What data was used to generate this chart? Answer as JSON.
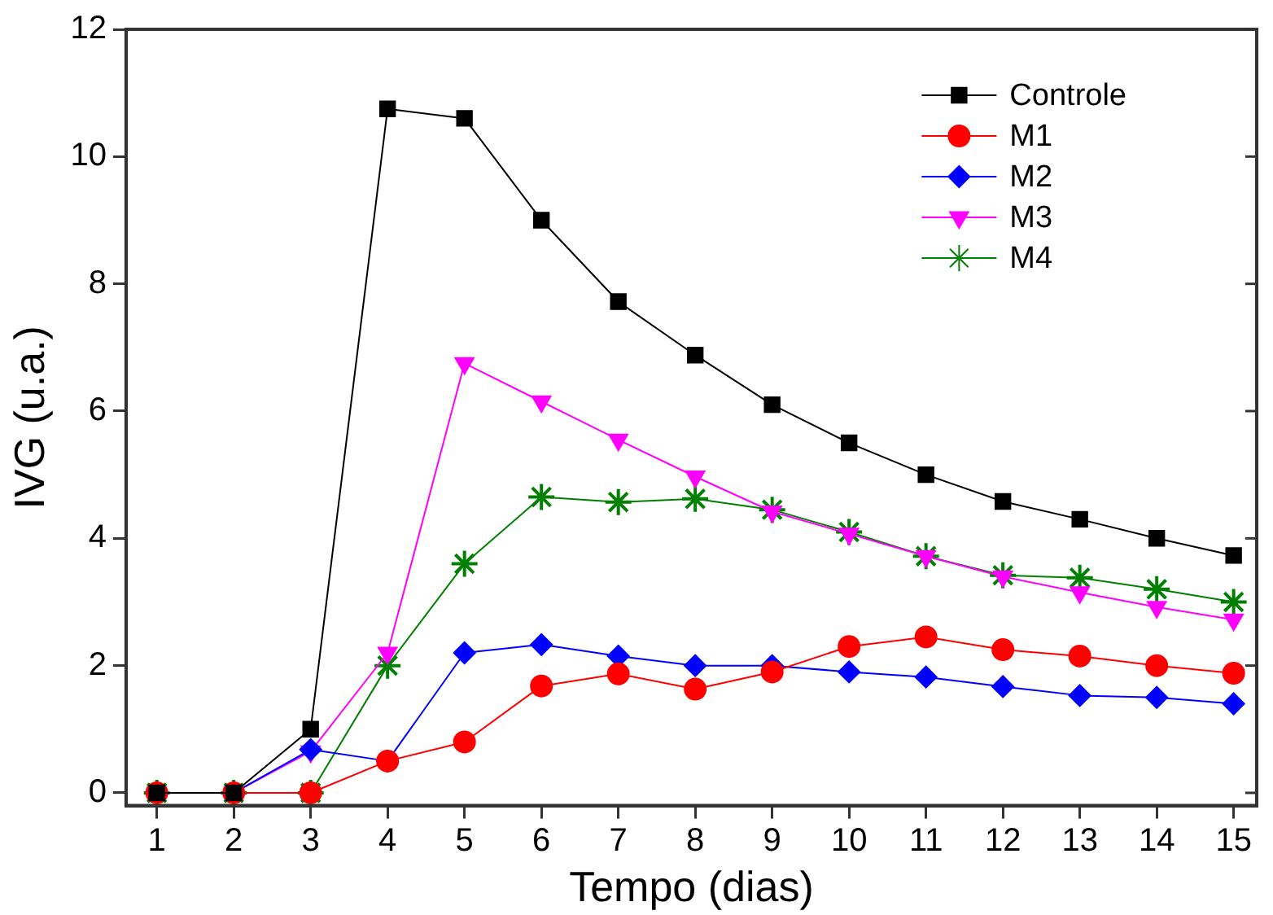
{
  "chart_data": {
    "type": "line",
    "xlabel": "Tempo (dias)",
    "ylabel": "IVG (u.a.)",
    "x": [
      1,
      2,
      3,
      4,
      5,
      6,
      7,
      8,
      9,
      10,
      11,
      12,
      13,
      14,
      15
    ],
    "xlim": [
      0.6,
      15.3
    ],
    "xticks": [
      1,
      2,
      3,
      4,
      5,
      6,
      7,
      8,
      9,
      10,
      11,
      12,
      13,
      14,
      15
    ],
    "ylim": [
      -0.2,
      12
    ],
    "yticks": [
      0,
      2,
      4,
      6,
      8,
      10,
      12
    ],
    "grid": false,
    "legend": "top right",
    "line_style": "solid",
    "series": [
      {
        "name": "Controle",
        "color": "#000000",
        "marker": "square",
        "values": [
          0,
          0,
          1.0,
          10.75,
          10.6,
          9.0,
          7.72,
          6.88,
          6.1,
          5.5,
          5.0,
          4.58,
          4.3,
          4.0,
          3.73
        ]
      },
      {
        "name": "M1",
        "color": "#ff0000",
        "marker": "circle",
        "values": [
          0,
          0,
          0,
          0.5,
          0.8,
          1.68,
          1.87,
          1.63,
          1.9,
          2.3,
          2.45,
          2.25,
          2.15,
          2.0,
          1.88
        ]
      },
      {
        "name": "M2",
        "color": "#0000ff",
        "marker": "diamond",
        "values": [
          0,
          0,
          0.68,
          0.5,
          2.2,
          2.33,
          2.15,
          2.0,
          2.0,
          1.9,
          1.82,
          1.67,
          1.53,
          1.5,
          1.4
        ]
      },
      {
        "name": "M3",
        "color": "#ff00ff",
        "marker": "triangle",
        "values": [
          0,
          0,
          0.65,
          2.2,
          6.75,
          6.15,
          5.55,
          4.97,
          4.42,
          4.07,
          3.72,
          3.4,
          3.15,
          2.92,
          2.72
        ]
      },
      {
        "name": "M4",
        "color": "#008000",
        "marker": "cross",
        "values": [
          0,
          0,
          0,
          2.0,
          3.6,
          4.65,
          4.57,
          4.62,
          4.45,
          4.1,
          3.72,
          3.42,
          3.38,
          3.2,
          3.0
        ]
      }
    ]
  }
}
